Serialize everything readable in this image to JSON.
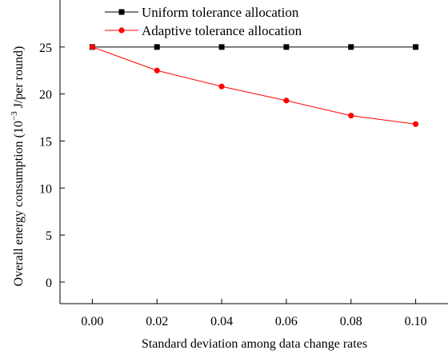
{
  "chart_data": {
    "type": "line",
    "x": [
      0.0,
      0.02,
      0.04,
      0.06,
      0.08,
      0.1
    ],
    "x_tick_labels": [
      "0.00",
      "0.02",
      "0.04",
      "0.06",
      "0.08",
      "0.10"
    ],
    "y_tick_labels": [
      "0",
      "5",
      "10",
      "15",
      "20",
      "25"
    ],
    "xlim": [
      -0.01,
      0.11
    ],
    "ylim": [
      -2.3,
      30
    ],
    "xlabel": "Standard deviation among data change rates",
    "ylabel_main": "Overall energy consumption (10",
    "ylabel_exp": "−3",
    "ylabel_tail": " J/per round)",
    "grid": false,
    "legend_position": "top",
    "series": [
      {
        "name": "Uniform tolerance allocation",
        "color": "#000000",
        "marker": "square",
        "values": [
          25.0,
          25.0,
          25.0,
          25.0,
          25.0,
          25.0
        ]
      },
      {
        "name": "Adaptive tolerance allocation",
        "color": "#ff0000",
        "marker": "circle",
        "values": [
          25.0,
          22.5,
          20.8,
          19.3,
          17.7,
          16.8
        ]
      }
    ]
  }
}
